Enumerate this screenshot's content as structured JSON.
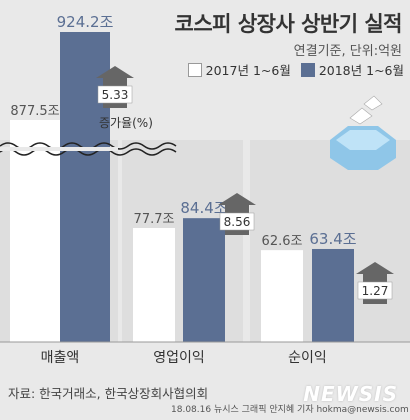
{
  "title": "코스피 상장사 상반기 실적",
  "unit_note": "연결기준, 단위:억원",
  "legend": [
    {
      "label": "2017년 1~6월",
      "color": "#ffffff"
    },
    {
      "label": "2018년 1~6월",
      "color": "#5b6f93"
    }
  ],
  "growth_label": "증가율(%)",
  "source": "자료: 한국거래소, 한국상장회사협의회",
  "credit": "18.08.16 뉴시스 그래픽 안지혜 기자 hokma@newsis.com",
  "logo": "NEWSIS",
  "colors": {
    "bar_2017": "#ffffff",
    "bar_2018": "#5b6f93",
    "arrow": "#666666",
    "background": "#e9e9e9",
    "category_band": "#d6d6d6"
  },
  "chart_data": {
    "type": "bar",
    "categories": [
      "매출액",
      "영업이익",
      "순이익"
    ],
    "series": [
      {
        "name": "2017년 1~6월",
        "values": [
          877.5,
          77.7,
          62.6
        ],
        "labels": [
          "877.5조",
          "77.7조",
          "62.6조"
        ]
      },
      {
        "name": "2018년 1~6월",
        "values": [
          924.2,
          84.4,
          63.4
        ],
        "labels": [
          "924.2조",
          "84.4조",
          "63.4조"
        ]
      }
    ],
    "growth_rates": [
      5.33,
      8.56,
      1.27
    ],
    "growth_labels": [
      "5.33",
      "8.56",
      "1.27"
    ],
    "axis_break": true,
    "grid": false,
    "legend_position": "top-right"
  }
}
